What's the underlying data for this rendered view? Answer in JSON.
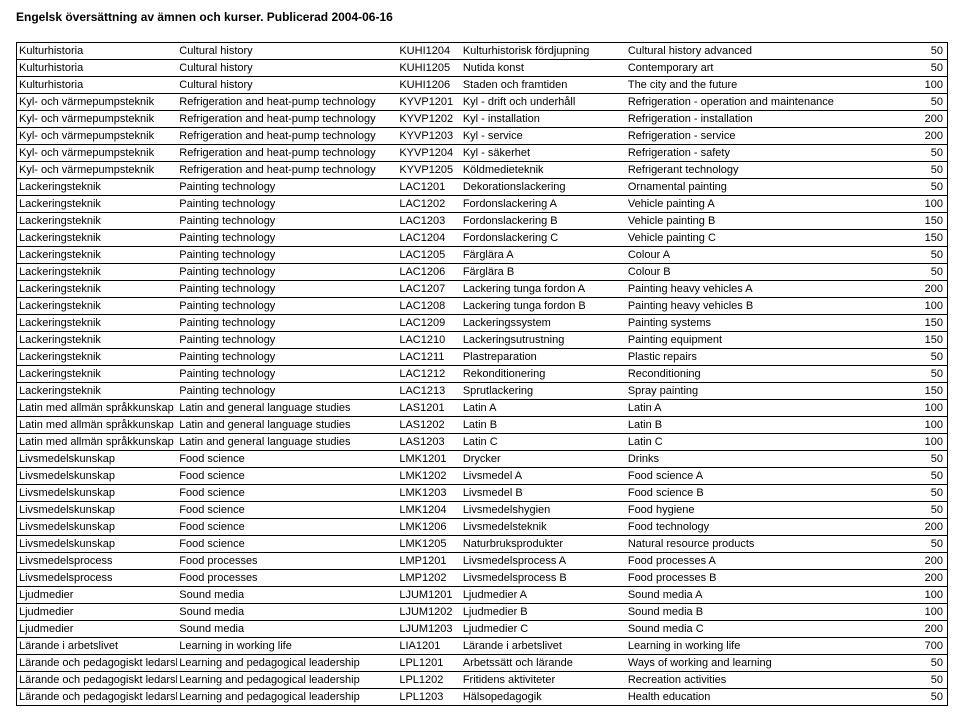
{
  "title": "Engelsk översättning av ämnen och kurser. Publicerad 2004-06-16",
  "rows": [
    {
      "sv_subject": "Kulturhistoria",
      "en_subject": "Cultural history",
      "code": "KUHI1204",
      "sv_course": "Kulturhistorisk fördjupning",
      "en_course": "Cultural history advanced",
      "points": "50"
    },
    {
      "sv_subject": "Kulturhistoria",
      "en_subject": "Cultural history",
      "code": "KUHI1205",
      "sv_course": "Nutida konst",
      "en_course": "Contemporary art",
      "points": "50"
    },
    {
      "sv_subject": "Kulturhistoria",
      "en_subject": "Cultural history",
      "code": "KUHI1206",
      "sv_course": "Staden och framtiden",
      "en_course": "The city and the future",
      "points": "100"
    },
    {
      "sv_subject": "Kyl- och värmepumpsteknik",
      "en_subject": "Refrigeration and heat-pump technology",
      "code": "KYVP1201",
      "sv_course": "Kyl - drift och underhåll",
      "en_course": "Refrigeration - operation and maintenance",
      "points": "50"
    },
    {
      "sv_subject": "Kyl- och värmepumpsteknik",
      "en_subject": "Refrigeration and heat-pump technology",
      "code": "KYVP1202",
      "sv_course": "Kyl - installation",
      "en_course": "Refrigeration - installation",
      "points": "200"
    },
    {
      "sv_subject": "Kyl- och värmepumpsteknik",
      "en_subject": "Refrigeration and heat-pump technology",
      "code": "KYVP1203",
      "sv_course": "Kyl - service",
      "en_course": "Refrigeration - service",
      "points": "200"
    },
    {
      "sv_subject": "Kyl- och värmepumpsteknik",
      "en_subject": "Refrigeration and heat-pump technology",
      "code": "KYVP1204",
      "sv_course": "Kyl - säkerhet",
      "en_course": "Refrigeration - safety",
      "points": "50"
    },
    {
      "sv_subject": "Kyl- och värmepumpsteknik",
      "en_subject": "Refrigeration and heat-pump technology",
      "code": "KYVP1205",
      "sv_course": "Köldmedieteknik",
      "en_course": "Refrigerant technology",
      "points": "50"
    },
    {
      "sv_subject": "Lackeringsteknik",
      "en_subject": "Painting technology",
      "code": "LAC1201",
      "sv_course": "Dekorationslackering",
      "en_course": "Ornamental painting",
      "points": "50"
    },
    {
      "sv_subject": "Lackeringsteknik",
      "en_subject": "Painting technology",
      "code": "LAC1202",
      "sv_course": "Fordonslackering A",
      "en_course": "Vehicle painting A",
      "points": "100"
    },
    {
      "sv_subject": "Lackeringsteknik",
      "en_subject": "Painting technology",
      "code": "LAC1203",
      "sv_course": "Fordonslackering B",
      "en_course": "Vehicle painting B",
      "points": "150"
    },
    {
      "sv_subject": "Lackeringsteknik",
      "en_subject": "Painting technology",
      "code": "LAC1204",
      "sv_course": "Fordonslackering C",
      "en_course": "Vehicle painting C",
      "points": "150"
    },
    {
      "sv_subject": "Lackeringsteknik",
      "en_subject": "Painting technology",
      "code": "LAC1205",
      "sv_course": "Färglära A",
      "en_course": "Colour A",
      "points": "50"
    },
    {
      "sv_subject": "Lackeringsteknik",
      "en_subject": "Painting technology",
      "code": "LAC1206",
      "sv_course": "Färglära B",
      "en_course": "Colour B",
      "points": "50"
    },
    {
      "sv_subject": "Lackeringsteknik",
      "en_subject": "Painting technology",
      "code": "LAC1207",
      "sv_course": "Lackering tunga fordon A",
      "en_course": "Painting heavy vehicles A",
      "points": "200"
    },
    {
      "sv_subject": "Lackeringsteknik",
      "en_subject": "Painting technology",
      "code": "LAC1208",
      "sv_course": "Lackering tunga fordon B",
      "en_course": "Painting heavy vehicles B",
      "points": "100"
    },
    {
      "sv_subject": "Lackeringsteknik",
      "en_subject": "Painting technology",
      "code": "LAC1209",
      "sv_course": "Lackeringssystem",
      "en_course": "Painting systems",
      "points": "150"
    },
    {
      "sv_subject": "Lackeringsteknik",
      "en_subject": "Painting technology",
      "code": "LAC1210",
      "sv_course": "Lackeringsutrustning",
      "en_course": "Painting equipment",
      "points": "150"
    },
    {
      "sv_subject": "Lackeringsteknik",
      "en_subject": "Painting technology",
      "code": "LAC1211",
      "sv_course": "Plastreparation",
      "en_course": "Plastic repairs",
      "points": "50"
    },
    {
      "sv_subject": "Lackeringsteknik",
      "en_subject": "Painting technology",
      "code": "LAC1212",
      "sv_course": "Rekonditionering",
      "en_course": "Reconditioning",
      "points": "50"
    },
    {
      "sv_subject": "Lackeringsteknik",
      "en_subject": "Painting technology",
      "code": "LAC1213",
      "sv_course": "Sprutlackering",
      "en_course": "Spray painting",
      "points": "150"
    },
    {
      "sv_subject": "Latin med allmän språkkunskap",
      "en_subject": "Latin and general language studies",
      "code": "LAS1201",
      "sv_course": "Latin A",
      "en_course": "Latin A",
      "points": "100"
    },
    {
      "sv_subject": "Latin med allmän språkkunskap",
      "en_subject": "Latin and general language studies",
      "code": "LAS1202",
      "sv_course": "Latin B",
      "en_course": "Latin B",
      "points": "100"
    },
    {
      "sv_subject": "Latin med allmän språkkunskap",
      "en_subject": "Latin and general language studies",
      "code": "LAS1203",
      "sv_course": "Latin C",
      "en_course": "Latin C",
      "points": "100"
    },
    {
      "sv_subject": "Livsmedelskunskap",
      "en_subject": "Food science",
      "code": "LMK1201",
      "sv_course": "Drycker",
      "en_course": "Drinks",
      "points": "50"
    },
    {
      "sv_subject": "Livsmedelskunskap",
      "en_subject": "Food science",
      "code": "LMK1202",
      "sv_course": "Livsmedel A",
      "en_course": "Food science A",
      "points": "50"
    },
    {
      "sv_subject": "Livsmedelskunskap",
      "en_subject": "Food science",
      "code": "LMK1203",
      "sv_course": "Livsmedel B",
      "en_course": "Food science B",
      "points": "50"
    },
    {
      "sv_subject": "Livsmedelskunskap",
      "en_subject": "Food science",
      "code": "LMK1204",
      "sv_course": "Livsmedelshygien",
      "en_course": "Food hygiene",
      "points": "50"
    },
    {
      "sv_subject": "Livsmedelskunskap",
      "en_subject": "Food science",
      "code": "LMK1206",
      "sv_course": "Livsmedelsteknik",
      "en_course": "Food technology",
      "points": "200"
    },
    {
      "sv_subject": "Livsmedelskunskap",
      "en_subject": "Food science",
      "code": "LMK1205",
      "sv_course": "Naturbruksprodukter",
      "en_course": "Natural resource products",
      "points": "50"
    },
    {
      "sv_subject": "Livsmedelsprocess",
      "en_subject": "Food processes",
      "code": "LMP1201",
      "sv_course": "Livsmedelsprocess A",
      "en_course": "Food processes A",
      "points": "200"
    },
    {
      "sv_subject": "Livsmedelsprocess",
      "en_subject": "Food processes",
      "code": "LMP1202",
      "sv_course": "Livsmedelsprocess B",
      "en_course": "Food processes B",
      "points": "200"
    },
    {
      "sv_subject": "Ljudmedier",
      "en_subject": "Sound media",
      "code": "LJUM1201",
      "sv_course": "Ljudmedier A",
      "en_course": "Sound media A",
      "points": "100"
    },
    {
      "sv_subject": "Ljudmedier",
      "en_subject": "Sound media",
      "code": "LJUM1202",
      "sv_course": "Ljudmedier B",
      "en_course": "Sound media B",
      "points": "100"
    },
    {
      "sv_subject": "Ljudmedier",
      "en_subject": "Sound media",
      "code": "LJUM1203",
      "sv_course": "Ljudmedier C",
      "en_course": "Sound media C",
      "points": "200"
    },
    {
      "sv_subject": "Lärande i arbetslivet",
      "en_subject": "Learning in working life",
      "code": "LIA1201",
      "sv_course": "Lärande i arbetslivet",
      "en_course": "Learning in working life",
      "points": "700"
    },
    {
      "sv_subject": "Lärande och pedagogiskt ledarskap",
      "en_subject": "Learning and pedagogical leadership",
      "code": "LPL1201",
      "sv_course": "Arbetssätt och lärande",
      "en_course": "Ways of working and learning",
      "points": "50"
    },
    {
      "sv_subject": "Lärande och pedagogiskt ledarskap",
      "en_subject": "Learning and pedagogical leadership",
      "code": "LPL1202",
      "sv_course": "Fritidens aktiviteter",
      "en_course": "Recreation activities",
      "points": "50"
    },
    {
      "sv_subject": "Lärande och pedagogiskt ledarskap",
      "en_subject": "Learning and pedagogical leadership",
      "code": "LPL1203",
      "sv_course": "Hälsopedagogik",
      "en_course": "Health education",
      "points": "50"
    }
  ]
}
